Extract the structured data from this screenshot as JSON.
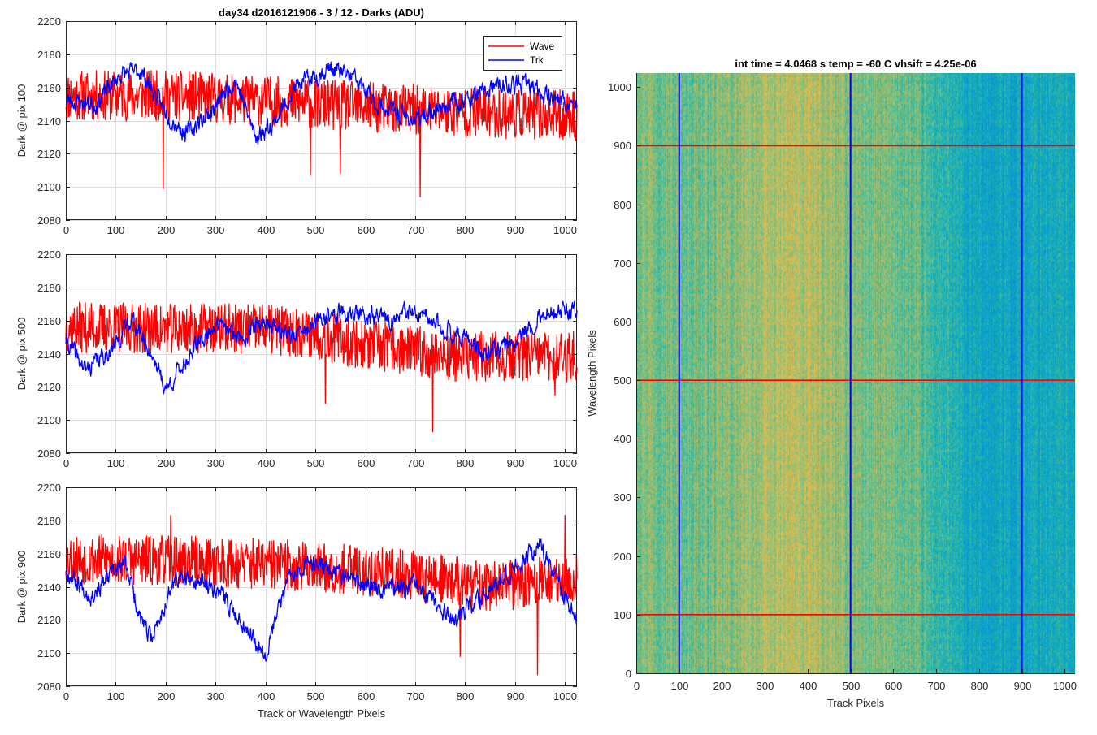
{
  "figure": {
    "main_title": "day34 d2016121906 - 3 / 12 - Darks (ADU)",
    "colors": {
      "wave": "#ff0000",
      "trk": "#0000ff",
      "grid": "#dcdcdc",
      "axis": "#262626"
    }
  },
  "chart_data": [
    {
      "type": "line",
      "title": "day34 d2016121906 - 3 / 12 - Darks (ADU)",
      "xlabel": "",
      "ylabel": "Dark @ pix 100",
      "xlim": [
        0,
        1024
      ],
      "ylim": [
        2080,
        2200
      ],
      "xticks": [
        0,
        100,
        200,
        300,
        400,
        500,
        600,
        700,
        800,
        900,
        1000
      ],
      "yticks": [
        2080,
        2100,
        2120,
        2140,
        2160,
        2180,
        2200
      ],
      "grid": true,
      "legend": {
        "placement": "top-right",
        "entries": [
          "Wave",
          "Trk"
        ]
      },
      "series": [
        {
          "name": "Wave",
          "color": "#ff0000",
          "mean": 2153,
          "noise": 9,
          "drift": [
            [
              0,
              2155
            ],
            [
              200,
              2155
            ],
            [
              400,
              2152
            ],
            [
              600,
              2148
            ],
            [
              800,
              2145
            ],
            [
              1024,
              2143
            ]
          ],
          "spikes": [
            [
              195,
              2099
            ],
            [
              710,
              2094
            ],
            [
              490,
              2107
            ],
            [
              550,
              2108
            ]
          ],
          "seed": 11
        },
        {
          "name": "Trk",
          "color": "#0000ff",
          "mean": 2155,
          "noise": 4,
          "drift": [
            [
              0,
              2152
            ],
            [
              60,
              2150
            ],
            [
              110,
              2168
            ],
            [
              150,
              2170
            ],
            [
              200,
              2145
            ],
            [
              240,
              2132
            ],
            [
              290,
              2145
            ],
            [
              340,
              2165
            ],
            [
              380,
              2130
            ],
            [
              420,
              2140
            ],
            [
              460,
              2160
            ],
            [
              530,
              2172
            ],
            [
              580,
              2165
            ],
            [
              620,
              2150
            ],
            [
              700,
              2140
            ],
            [
              760,
              2150
            ],
            [
              800,
              2152
            ],
            [
              860,
              2160
            ],
            [
              920,
              2162
            ],
            [
              1024,
              2148
            ]
          ],
          "seed": 23
        }
      ]
    },
    {
      "type": "line",
      "title": "",
      "xlabel": "",
      "ylabel": "Dark @ pix 500",
      "xlim": [
        0,
        1024
      ],
      "ylim": [
        2080,
        2200
      ],
      "xticks": [
        0,
        100,
        200,
        300,
        400,
        500,
        600,
        700,
        800,
        900,
        1000
      ],
      "yticks": [
        2080,
        2100,
        2120,
        2140,
        2160,
        2180,
        2200
      ],
      "grid": true,
      "series": [
        {
          "name": "Wave",
          "color": "#ff0000",
          "mean": 2152,
          "noise": 9,
          "drift": [
            [
              0,
              2156
            ],
            [
              200,
              2155
            ],
            [
              400,
              2155
            ],
            [
              500,
              2152
            ],
            [
              600,
              2145
            ],
            [
              800,
              2138
            ],
            [
              1024,
              2138
            ]
          ],
          "spikes": [
            [
              735,
              2093
            ],
            [
              520,
              2110
            ],
            [
              980,
              2115
            ]
          ],
          "seed": 37
        },
        {
          "name": "Trk",
          "color": "#0000ff",
          "mean": 2150,
          "noise": 4,
          "drift": [
            [
              0,
              2148
            ],
            [
              40,
              2130
            ],
            [
              100,
              2145
            ],
            [
              130,
              2162
            ],
            [
              180,
              2135
            ],
            [
              200,
              2118
            ],
            [
              250,
              2140
            ],
            [
              300,
              2158
            ],
            [
              350,
              2150
            ],
            [
              400,
              2160
            ],
            [
              460,
              2150
            ],
            [
              520,
              2162
            ],
            [
              560,
              2165
            ],
            [
              650,
              2160
            ],
            [
              690,
              2165
            ],
            [
              760,
              2155
            ],
            [
              800,
              2150
            ],
            [
              840,
              2138
            ],
            [
              900,
              2148
            ],
            [
              960,
              2165
            ],
            [
              1024,
              2165
            ]
          ],
          "seed": 41
        }
      ]
    },
    {
      "type": "line",
      "title": "",
      "xlabel": "Track or Wavelength Pixels",
      "ylabel": "Dark @ pix 900",
      "xlim": [
        0,
        1024
      ],
      "ylim": [
        2080,
        2200
      ],
      "xticks": [
        0,
        100,
        200,
        300,
        400,
        500,
        600,
        700,
        800,
        900,
        1000
      ],
      "yticks": [
        2080,
        2100,
        2120,
        2140,
        2160,
        2180,
        2200
      ],
      "grid": true,
      "series": [
        {
          "name": "Wave",
          "color": "#ff0000",
          "mean": 2153,
          "noise": 9,
          "drift": [
            [
              0,
              2157
            ],
            [
              300,
              2155
            ],
            [
              500,
              2152
            ],
            [
              700,
              2147
            ],
            [
              850,
              2140
            ],
            [
              1024,
              2145
            ]
          ],
          "spikes": [
            [
              945,
              2087
            ],
            [
              1000,
              2183
            ],
            [
              210,
              2183
            ],
            [
              790,
              2098
            ]
          ],
          "seed": 53
        },
        {
          "name": "Trk",
          "color": "#0000ff",
          "mean": 2145,
          "noise": 4,
          "drift": [
            [
              0,
              2150
            ],
            [
              50,
              2135
            ],
            [
              120,
              2155
            ],
            [
              150,
              2120
            ],
            [
              170,
              2108
            ],
            [
              220,
              2145
            ],
            [
              300,
              2140
            ],
            [
              400,
              2100
            ],
            [
              450,
              2150
            ],
            [
              500,
              2155
            ],
            [
              600,
              2140
            ],
            [
              700,
              2140
            ],
            [
              780,
              2118
            ],
            [
              850,
              2140
            ],
            [
              950,
              2165
            ],
            [
              1000,
              2135
            ],
            [
              1024,
              2120
            ]
          ],
          "seed": 67
        }
      ]
    },
    {
      "type": "heatmap",
      "title": "int time = 4.0468 s    temp = -60 C    vhsift = 4.25e-06",
      "xlabel": "Track Pixels",
      "ylabel": "Wavelength Pixels",
      "xlim": [
        0,
        1024
      ],
      "ylim": [
        0,
        1024
      ],
      "xticks": [
        0,
        100,
        200,
        300,
        400,
        500,
        600,
        700,
        800,
        900,
        1000
      ],
      "yticks": [
        0,
        100,
        200,
        300,
        400,
        500,
        600,
        700,
        800,
        900,
        1000
      ],
      "colormap": "parula",
      "vertical_lines": {
        "x": [
          100,
          500,
          900
        ],
        "color": "#0000ff"
      },
      "horizontal_lines": {
        "y": [
          100,
          500,
          900
        ],
        "color": "#ff0000"
      }
    }
  ]
}
